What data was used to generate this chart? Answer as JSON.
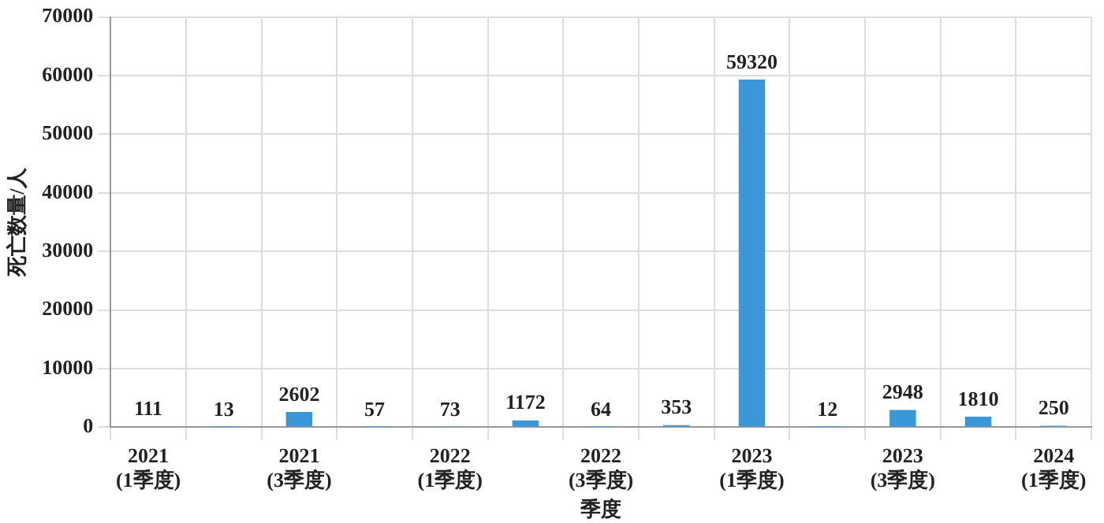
{
  "chart_data": {
    "type": "bar",
    "xlabel": "季度",
    "ylabel": "死亡数量/人",
    "categories": [
      "2021\n(1季度)",
      null,
      "2021\n(3季度)",
      null,
      "2022\n(1季度)",
      null,
      "2022\n(3季度)",
      null,
      "2023\n(1季度)",
      null,
      "2023\n(3季度)",
      null,
      "2024\n(1季度)"
    ],
    "values": [
      111,
      13,
      2602,
      57,
      73,
      1172,
      64,
      353,
      59320,
      12,
      2948,
      1810,
      250
    ],
    "color": "#3a98d8",
    "ylim": [
      0,
      70000
    ],
    "yticks": [
      0,
      10000,
      20000,
      30000,
      40000,
      50000,
      60000,
      70000
    ],
    "grid": true,
    "data_labels": true
  }
}
